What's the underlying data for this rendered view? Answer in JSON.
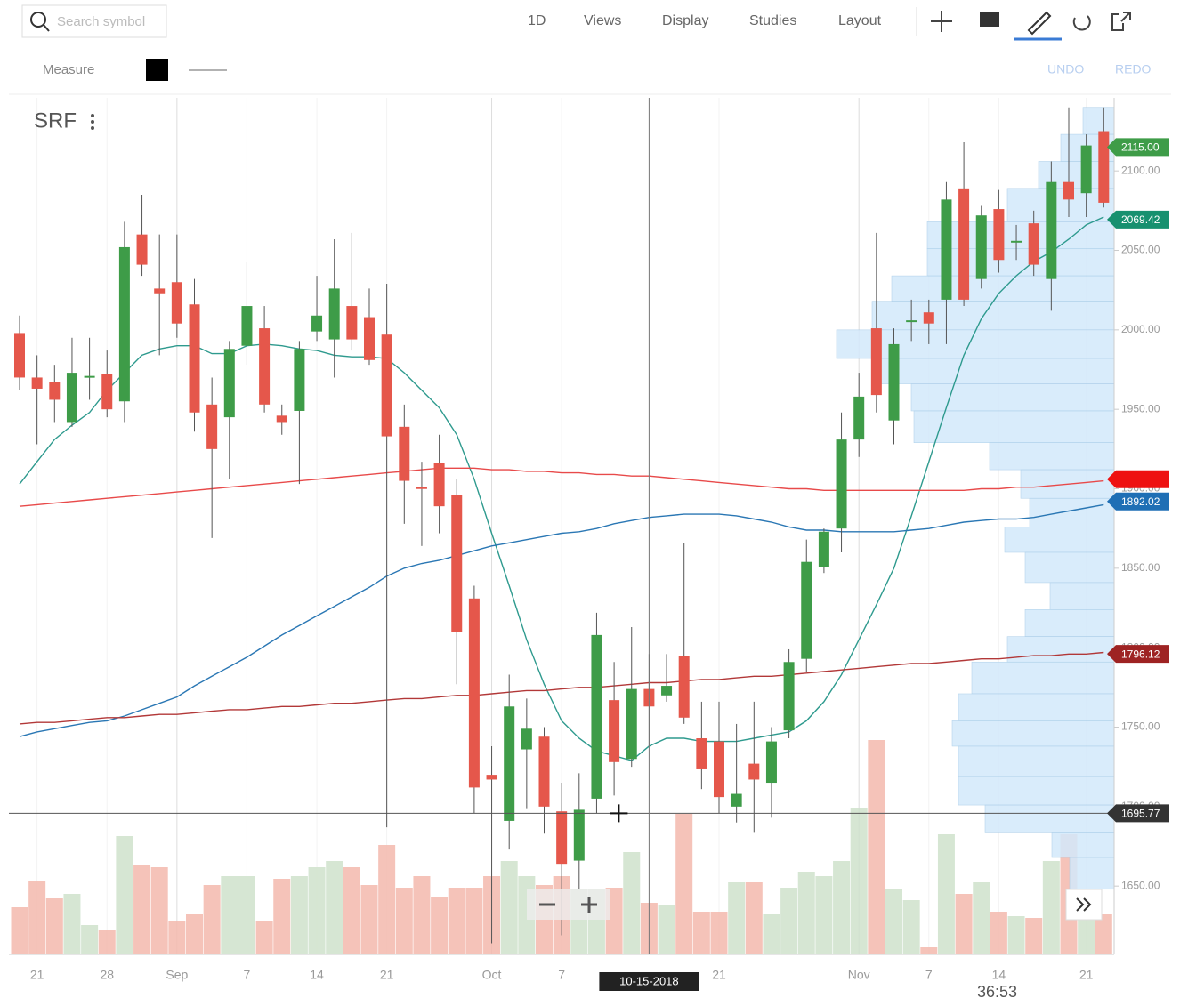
{
  "toolbar": {
    "search_placeholder": "Search symbol",
    "interval": "1D",
    "menus": [
      "Views",
      "Display",
      "Studies",
      "Layout"
    ],
    "measure": "Measure",
    "undo": "UNDO",
    "redo": "REDO"
  },
  "clock": "36:53",
  "chart_data": {
    "type": "candlestick",
    "title": "SRF",
    "categories": [
      null,
      "21",
      null,
      null,
      null,
      "28",
      null,
      null,
      null,
      "Sep",
      null,
      null,
      null,
      "7",
      null,
      null,
      null,
      "14",
      null,
      null,
      null,
      "21",
      null,
      null,
      null,
      null,
      null,
      "Oct",
      null,
      null,
      null,
      "7",
      null,
      null,
      null,
      null,
      null,
      null,
      null,
      null,
      "21",
      null,
      null,
      null,
      null,
      null,
      null,
      null,
      "Nov",
      null,
      null,
      null,
      "7",
      null,
      null,
      null,
      "14",
      null,
      null,
      null,
      null,
      "21",
      null
    ],
    "open": [
      1998,
      1970,
      1967,
      1942,
      1971,
      1972,
      1955,
      2060,
      2026,
      2030,
      2016,
      1953,
      1945,
      1990,
      2001,
      1946,
      1949,
      1999,
      1994,
      2015,
      2008,
      1997,
      1939,
      1901,
      1916,
      1896,
      1831,
      1720,
      1691,
      1736,
      1744,
      1697,
      1666,
      1705,
      1767,
      1730,
      1774,
      1770,
      1795,
      1743,
      1741,
      1700,
      1727,
      1715,
      1748,
      1793,
      1851,
      1875,
      1931,
      2001,
      1943,
      2005,
      2011,
      2019,
      2089,
      2032,
      2076,
      2055,
      2067,
      2032,
      2093,
      2086,
      2125
    ],
    "high": [
      2009,
      1984,
      1978,
      1995,
      1995,
      1987,
      2068,
      2085,
      2060,
      2060,
      2032,
      1970,
      1993,
      2043,
      2015,
      1953,
      1993,
      2034,
      2057,
      2061,
      2026,
      2029,
      1953,
      1917,
      1934,
      1906,
      1839,
      1738,
      1783,
      1768,
      1750,
      1715,
      1721,
      1822,
      1791,
      1813,
      1796,
      1796,
      1866,
      1766,
      1766,
      1752,
      1766,
      1750,
      1799,
      1868,
      1875,
      1948,
      1973,
      2061,
      2001,
      2019,
      2019,
      2093,
      2118,
      2078,
      2088,
      2066,
      2075,
      2106,
      2140,
      2123,
      2140
    ],
    "low": [
      1962,
      1928,
      1942,
      1939,
      1956,
      1945,
      1942,
      2034,
      1984,
      1995,
      1936,
      1869,
      1906,
      1978,
      1948,
      1934,
      1903,
      1993,
      1970,
      1987,
      1978,
      1687,
      1878,
      1864,
      1872,
      1777,
      1696,
      1614,
      1673,
      1699,
      1683,
      1619,
      1648,
      1696,
      1707,
      1725,
      1738,
      1766,
      1752,
      1711,
      1696,
      1690,
      1684,
      1693,
      1743,
      1785,
      1847,
      1860,
      1920,
      1948,
      1928,
      1993,
      1991,
      1991,
      2015,
      2026,
      2036,
      2044,
      2034,
      2012,
      2071,
      2071,
      2077
    ],
    "close": [
      1970,
      1963,
      1956,
      1973,
      1971,
      1950,
      2052,
      2041,
      2023,
      2004,
      1948,
      1925,
      1988,
      2015,
      1953,
      1942,
      1988,
      2009,
      2026,
      1994,
      1981,
      1933,
      1905,
      1900,
      1889,
      1810,
      1712,
      1717,
      1763,
      1749,
      1700,
      1664,
      1698,
      1808,
      1728,
      1774,
      1763,
      1776,
      1756,
      1724,
      1706,
      1708,
      1717,
      1741,
      1791,
      1854,
      1873,
      1931,
      1958,
      1959,
      1991,
      2006,
      2004,
      2082,
      2019,
      2072,
      2044,
      2056,
      2041,
      2093,
      2082,
      2116,
      2080
    ],
    "up_color": "#3e9c48",
    "down_color": "#e5574b",
    "volume": [
      53,
      83,
      63,
      68,
      33,
      28,
      133,
      101,
      98,
      38,
      45,
      78,
      88,
      88,
      38,
      85,
      88,
      98,
      105,
      98,
      78,
      123,
      75,
      88,
      65,
      75,
      75,
      88,
      105,
      88,
      78,
      88,
      73,
      73,
      75,
      115,
      58,
      55,
      158,
      48,
      48,
      81,
      81,
      45,
      75,
      93,
      88,
      105,
      165,
      241,
      73,
      61,
      8,
      135,
      68,
      81,
      48,
      43,
      41,
      105,
      135,
      48,
      45
    ],
    "volume_colors": [
      "#f3b9ad",
      "#cfe2cb"
    ],
    "lines": [
      {
        "color": "#2e9a8e",
        "values": [
          1903,
          1917,
          1931,
          1940,
          1948,
          1962,
          1973,
          1984,
          1988,
          1990,
          1990,
          1985,
          1985,
          1990,
          1991,
          1990,
          1988,
          1987,
          1984,
          1983,
          1983,
          1982,
          1973,
          1962,
          1951,
          1934,
          1906,
          1872,
          1839,
          1805,
          1777,
          1754,
          1743,
          1735,
          1732,
          1729,
          1738,
          1743,
          1743,
          1741,
          1741,
          1741,
          1743,
          1745,
          1747,
          1754,
          1766,
          1783,
          1805,
          1827,
          1850,
          1883,
          1917,
          1951,
          1984,
          2007,
          2023,
          2034,
          2043,
          2049,
          2057,
          2066,
          2071
        ]
      },
      {
        "color": "#2a77b4",
        "values": [
          1744,
          1747,
          1749,
          1751,
          1753,
          1754,
          1757,
          1761,
          1765,
          1769,
          1776,
          1782,
          1788,
          1794,
          1801,
          1808,
          1814,
          1820,
          1826,
          1832,
          1838,
          1845,
          1850,
          1853,
          1855,
          1858,
          1861,
          1864,
          1866,
          1868,
          1870,
          1872,
          1873,
          1875,
          1878,
          1880,
          1882,
          1883,
          1884,
          1884,
          1884,
          1883,
          1881,
          1879,
          1876,
          1874,
          1874,
          1873,
          1873,
          1873,
          1873,
          1874,
          1875,
          1877,
          1879,
          1880,
          1881,
          1881,
          1882,
          1884,
          1886,
          1888,
          1890
        ]
      },
      {
        "color": "#e84a4a",
        "values": [
          1889,
          1890,
          1891,
          1892,
          1893,
          1894,
          1895,
          1896,
          1897,
          1898,
          1899,
          1900,
          1901,
          1902,
          1903,
          1904,
          1905,
          1906,
          1907,
          1908,
          1909,
          1910,
          1911,
          1912,
          1913,
          1913,
          1913,
          1912,
          1912,
          1911,
          1911,
          1910,
          1910,
          1909,
          1909,
          1908,
          1908,
          1907,
          1906,
          1905,
          1904,
          1903,
          1902,
          1901,
          1900,
          1900,
          1899,
          1899,
          1899,
          1899,
          1899,
          1899,
          1899,
          1899,
          1899,
          1900,
          1900,
          1901,
          1901,
          1902,
          1903,
          1904,
          1905
        ]
      },
      {
        "color": "#b23838",
        "values": [
          1752,
          1753,
          1753,
          1754,
          1755,
          1756,
          1756,
          1757,
          1758,
          1758,
          1759,
          1760,
          1761,
          1761,
          1762,
          1763,
          1763,
          1764,
          1765,
          1765,
          1766,
          1767,
          1768,
          1768,
          1769,
          1770,
          1770,
          1771,
          1772,
          1773,
          1773,
          1774,
          1775,
          1775,
          1776,
          1777,
          1778,
          1778,
          1779,
          1780,
          1780,
          1781,
          1782,
          1782,
          1783,
          1784,
          1785,
          1786,
          1787,
          1788,
          1789,
          1790,
          1790,
          1791,
          1792,
          1793,
          1793,
          1794,
          1795,
          1795,
          1796,
          1796,
          1797
        ]
      }
    ],
    "profile": {
      "bins": [
        2140,
        2123,
        2106,
        2089,
        2068,
        2051,
        2034,
        2018,
        2000,
        1982,
        1966,
        1949,
        1929,
        1912,
        1894,
        1876,
        1860,
        1841,
        1824,
        1807,
        1791,
        1771,
        1754,
        1738,
        1719,
        1701,
        1684,
        1668,
        1648
      ],
      "values": [
        35,
        60,
        85,
        120,
        210,
        210,
        250,
        272,
        312,
        272,
        228,
        225,
        140,
        105,
        95,
        123,
        100,
        72,
        100,
        120,
        160,
        175,
        182,
        175,
        175,
        145,
        70,
        50
      ],
      "color": "#d3e9fb"
    },
    "ylim": [
      1607,
      2146
    ],
    "yticks": [
      {
        "value": 1650,
        "label": "1650.00"
      },
      {
        "value": 1700,
        "label": "1700.00"
      },
      {
        "value": 1750,
        "label": "1750.00"
      },
      {
        "value": 1800,
        "label": "1800.00"
      },
      {
        "value": 1850,
        "label": "1850.00"
      },
      {
        "value": 1900,
        "label": "1900.00"
      },
      {
        "value": 1950,
        "label": "1950.00"
      },
      {
        "value": 2000,
        "label": "2000.00"
      },
      {
        "value": 2050,
        "label": "2050.00"
      },
      {
        "value": 2100,
        "label": "2100.00"
      }
    ],
    "price_tags": [
      {
        "value": 2115,
        "label": "2115.00",
        "color": "#3e9c48"
      },
      {
        "value": 2069.42,
        "label": "2069.42",
        "color": "#17906f"
      },
      {
        "value": 1906,
        "color": "#ee1111"
      },
      {
        "value": 1892.02,
        "label": "1892.02",
        "color": "#1f6fb5"
      },
      {
        "value": 1796.12,
        "label": "1796.12",
        "color": "#9e2323"
      }
    ],
    "crosshair": {
      "price": 1695.77,
      "date": "10-15-2018",
      "index": 36
    },
    "grid": true
  }
}
